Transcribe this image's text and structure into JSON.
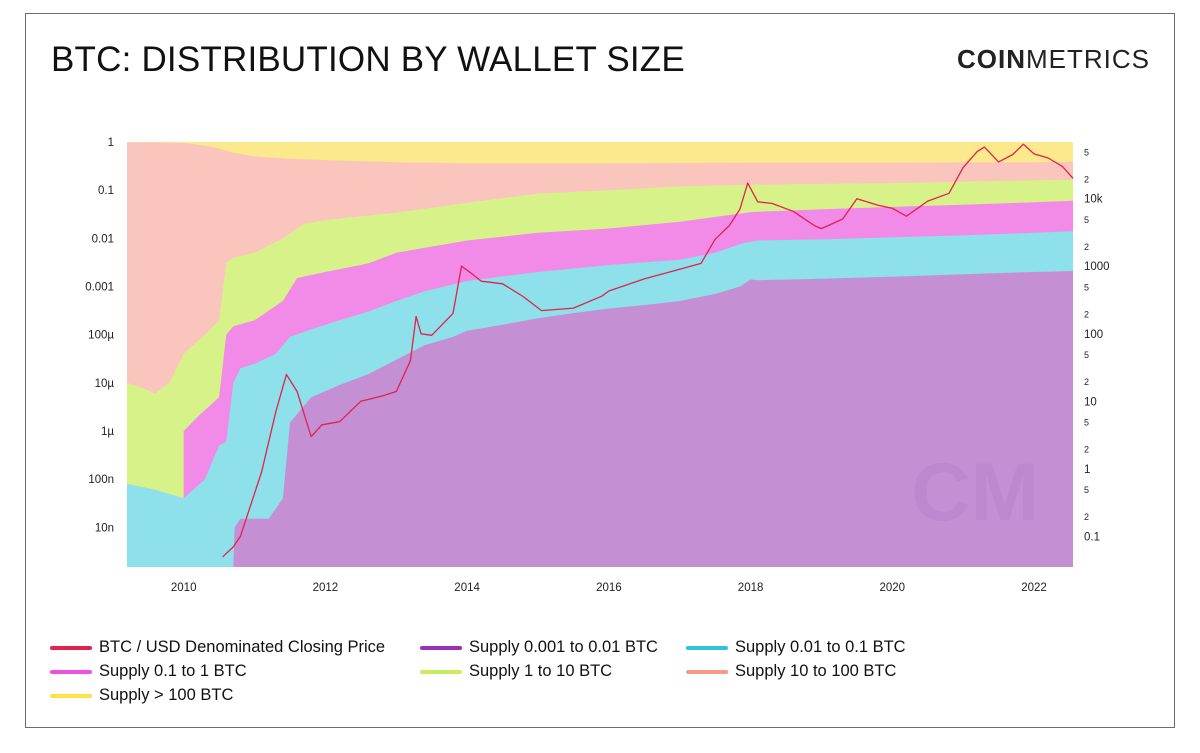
{
  "title": "BTC: DISTRIBUTION BY WALLET SIZE",
  "brand": {
    "bold": "COIN",
    "light": "METRICS"
  },
  "watermark": "CM",
  "chart_data": {
    "type": "area",
    "y_scale": "log",
    "y_right_scale": "log",
    "x_range": [
      2009.2,
      2022.55
    ],
    "y_left_range": [
      1.5e-09,
      1
    ],
    "y_right_range": [
      0.0353,
      69000
    ],
    "grid": false,
    "legend_position": "bottom",
    "x_ticks": [
      "2010",
      "2012",
      "2014",
      "2016",
      "2018",
      "2020",
      "2022"
    ],
    "y_left_ticks": [
      "1",
      "0.1",
      "0.01",
      "0.001",
      "100µ",
      "10µ",
      "1µ",
      "100n",
      "10n"
    ],
    "y_right_ticks": [
      "5",
      "2",
      "10k",
      "5",
      "2",
      "1000",
      "5",
      "2",
      "100",
      "5",
      "2",
      "10",
      "5",
      "2",
      "1",
      "5",
      "2",
      "0.1"
    ],
    "series": [
      {
        "name": "Supply 0.001 to 0.01 BTC",
        "color": "#c58fd4",
        "x": [
          2010.7,
          2010.72,
          2010.8,
          2011.0,
          2011.2,
          2011.4,
          2011.5,
          2011.8,
          2012.2,
          2012.6,
          2013.0,
          2013.4,
          2013.8,
          2014.0,
          2014.5,
          2015.0,
          2015.5,
          2016.0,
          2016.5,
          2017.0,
          2017.5,
          2017.85,
          2018.0,
          2018.1,
          2019.0,
          2020.0,
          2021.0,
          2022.0,
          2022.55
        ],
        "values": [
          1.5e-09,
          1e-08,
          1.5e-08,
          1.5e-08,
          1.5e-08,
          4e-08,
          1.5e-06,
          5e-06,
          9e-06,
          1.5e-05,
          3e-05,
          6e-05,
          9e-05,
          0.00012,
          0.00016,
          0.00022,
          0.00028,
          0.00035,
          0.00041,
          0.0005,
          0.0007,
          0.001,
          0.0014,
          0.00135,
          0.00145,
          0.0016,
          0.0018,
          0.002,
          0.0021
        ]
      },
      {
        "name": "Supply 0.01 to 0.1 BTC",
        "color": "#8ee0ea",
        "x": [
          2009.2,
          2009.6,
          2010.0,
          2010.3,
          2010.5,
          2010.6,
          2010.7,
          2010.8,
          2011.0,
          2011.3,
          2011.5,
          2011.8,
          2012.2,
          2012.6,
          2013.0,
          2013.4,
          2014.0,
          2015.0,
          2016.0,
          2017.0,
          2017.5,
          2017.9,
          2018.1,
          2019.0,
          2020.0,
          2021.0,
          2022.0,
          2022.55
        ],
        "values": [
          8e-08,
          6e-08,
          4e-08,
          1e-07,
          5e-07,
          6e-07,
          1e-05,
          2e-05,
          2.5e-05,
          4e-05,
          9e-05,
          0.00013,
          0.0002,
          0.0003,
          0.0005,
          0.0008,
          0.0013,
          0.002,
          0.0028,
          0.0036,
          0.005,
          0.008,
          0.009,
          0.0095,
          0.0105,
          0.0115,
          0.013,
          0.014
        ]
      },
      {
        "name": "Supply 0.1 to 1 BTC",
        "color": "#f28ae8",
        "x": [
          2010.0,
          2010.2,
          2010.5,
          2010.6,
          2010.7,
          2011.0,
          2011.4,
          2011.6,
          2012.0,
          2012.6,
          2013.0,
          2014.0,
          2015.0,
          2016.0,
          2017.0,
          2018.0,
          2019.0,
          2020.0,
          2021.0,
          2022.0,
          2022.55
        ],
        "values": [
          1e-06,
          2e-06,
          5e-06,
          0.0001,
          0.00015,
          0.0002,
          0.0005,
          0.0015,
          0.002,
          0.003,
          0.005,
          0.009,
          0.013,
          0.016,
          0.022,
          0.035,
          0.04,
          0.045,
          0.05,
          0.056,
          0.06
        ]
      },
      {
        "name": "Supply 1 to 10 BTC",
        "color": "#d8f28a",
        "x": [
          2009.2,
          2009.4,
          2009.6,
          2009.8,
          2010.0,
          2010.3,
          2010.5,
          2010.6,
          2010.7,
          2011.0,
          2011.4,
          2011.7,
          2012.0,
          2013.0,
          2014.0,
          2015.0,
          2016.0,
          2017.0,
          2018.0,
          2019.0,
          2020.0,
          2021.0,
          2022.0,
          2022.55
        ],
        "values": [
          1e-05,
          8e-06,
          6e-06,
          1e-05,
          4e-05,
          0.0001,
          0.0002,
          0.003,
          0.004,
          0.005,
          0.01,
          0.02,
          0.024,
          0.034,
          0.055,
          0.085,
          0.1,
          0.12,
          0.13,
          0.135,
          0.14,
          0.15,
          0.16,
          0.165
        ]
      },
      {
        "name": "Supply 10 to 100 BTC",
        "color": "#f9c5bd",
        "x": [
          2009.2,
          2009.6,
          2010.0,
          2010.4,
          2010.7,
          2011.0,
          2011.5,
          2012.0,
          2013.0,
          2014.0,
          2016.0,
          2018.0,
          2020.0,
          2021.0,
          2022.0,
          2022.55
        ],
        "values": [
          0.99,
          0.98,
          0.96,
          0.8,
          0.6,
          0.5,
          0.45,
          0.42,
          0.38,
          0.36,
          0.36,
          0.37,
          0.37,
          0.38,
          0.38,
          0.39
        ]
      },
      {
        "name": "Supply > 100 BTC",
        "color": "#fbe98c",
        "x": [
          2009.2,
          2022.55
        ],
        "values": [
          1,
          1
        ]
      },
      {
        "name": "BTC / USD Denominated Closing Price",
        "color": "#e0224f",
        "axis": "right",
        "x": [
          2010.55,
          2010.7,
          2010.8,
          2010.95,
          2011.1,
          2011.3,
          2011.45,
          2011.6,
          2011.8,
          2011.95,
          2012.2,
          2012.5,
          2012.8,
          2013.0,
          2013.2,
          2013.28,
          2013.35,
          2013.5,
          2013.8,
          2013.92,
          2014.05,
          2014.2,
          2014.5,
          2014.8,
          2015.05,
          2015.5,
          2015.9,
          2016.0,
          2016.5,
          2017.0,
          2017.3,
          2017.5,
          2017.7,
          2017.85,
          2017.96,
          2018.1,
          2018.3,
          2018.6,
          2018.9,
          2019.0,
          2019.3,
          2019.5,
          2019.8,
          2020.0,
          2020.2,
          2020.5,
          2020.8,
          2021.0,
          2021.2,
          2021.3,
          2021.5,
          2021.7,
          2021.85,
          2022.0,
          2022.2,
          2022.4,
          2022.55
        ],
        "values": [
          0.05,
          0.07,
          0.1,
          0.3,
          0.9,
          7.0,
          25.0,
          14.0,
          3.0,
          4.5,
          5.0,
          10.0,
          12.0,
          14.0,
          40.0,
          180.0,
          100.0,
          95.0,
          200.0,
          1000.0,
          800.0,
          600.0,
          550.0,
          350.0,
          220.0,
          240.0,
          360.0,
          430.0,
          650.0,
          900.0,
          1100.0,
          2500.0,
          4000.0,
          7000.0,
          17000.0,
          9000.0,
          8500.0,
          6500.0,
          4000.0,
          3600.0,
          5000.0,
          10000.0,
          8000.0,
          7200.0,
          5500.0,
          9200.0,
          12000.0,
          29000.0,
          50000.0,
          58000.0,
          35000.0,
          45000.0,
          64000.0,
          46000.0,
          40000.0,
          30000.0,
          20000.0
        ]
      }
    ]
  },
  "legend": [
    {
      "label": "BTC / USD Denominated Closing Price",
      "color": "#e0224f"
    },
    {
      "label": "Supply 0.001 to 0.01 BTC",
      "color": "#9b30b5"
    },
    {
      "label": "Supply 0.01 to 0.1 BTC",
      "color": "#2ec3e0"
    },
    {
      "label": "Supply 0.1 to 1 BTC",
      "color": "#ee4fe4"
    },
    {
      "label": "Supply 1 to 10 BTC",
      "color": "#c7ef5a"
    },
    {
      "label": "Supply 10 to 100 BTC",
      "color": "#f89a85"
    },
    {
      "label": "Supply > 100 BTC",
      "color": "#fde24a"
    }
  ]
}
